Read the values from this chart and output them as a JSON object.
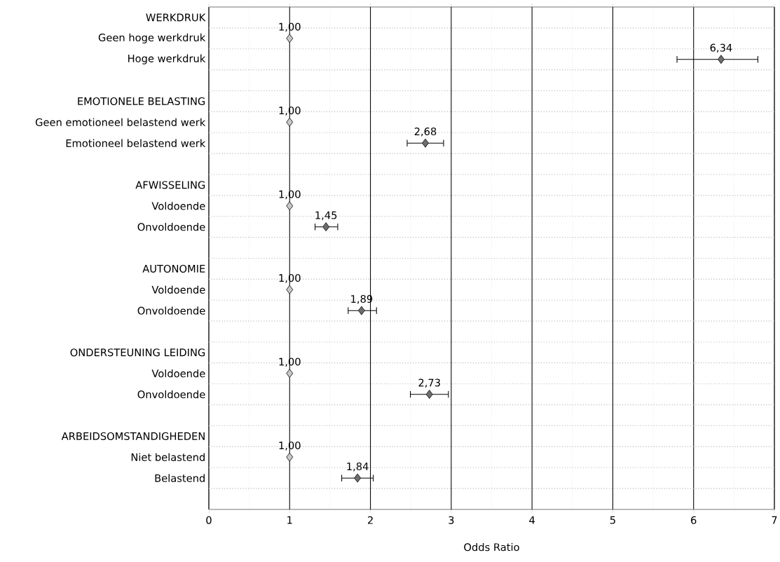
{
  "chart_data": {
    "type": "scatter",
    "orientation": "horizontal",
    "xlabel": "Odds Ratio",
    "xlim": [
      0,
      7
    ],
    "xticks": [
      0,
      1,
      2,
      3,
      4,
      5,
      6,
      7
    ],
    "grid": true,
    "marker": "diamond",
    "categories": [
      "WERKDRUK",
      "Geen hoge werkdruk",
      "Hoge werkdruk",
      null,
      "EMOTIONELE BELASTING",
      "Geen emotioneel belastend werk",
      "Emotioneel belastend werk",
      null,
      "AFWISSELING",
      "Voldoende",
      "Onvoldoende",
      null,
      "AUTONOMIE",
      "Voldoende",
      "Onvoldoende",
      null,
      "ONDERSTEUNING LEIDING",
      "Voldoende",
      "Onvoldoende",
      null,
      "ARBEIDSOMSTANDIGHEDEN",
      "Niet belastend",
      "Belastend",
      null
    ],
    "series": [
      {
        "color": "#c8c8c8",
        "values": [
          null,
          1.0,
          null,
          null,
          null,
          1.0,
          null,
          null,
          null,
          1.0,
          null,
          null,
          null,
          1.0,
          null,
          null,
          null,
          1.0,
          null,
          null,
          null,
          1.0,
          null,
          null
        ],
        "value_labels": [
          null,
          "1,00",
          null,
          null,
          null,
          "1,00",
          null,
          null,
          null,
          "1,00",
          null,
          null,
          null,
          "1,00",
          null,
          null,
          null,
          "1,00",
          null,
          null,
          null,
          "1,00",
          null,
          null
        ]
      },
      {
        "color": "#6e6e6e",
        "values": [
          null,
          null,
          6.34,
          null,
          null,
          null,
          2.68,
          null,
          null,
          null,
          1.45,
          null,
          null,
          null,
          1.89,
          null,
          null,
          null,
          2.73,
          null,
          null,
          null,
          1.84,
          null
        ],
        "errors": [
          null,
          null,
          [
            5.79,
            6.8
          ],
          null,
          null,
          null,
          [
            2.45,
            2.91
          ],
          null,
          null,
          null,
          [
            1.31,
            1.6
          ],
          null,
          null,
          null,
          [
            1.72,
            2.08
          ],
          null,
          null,
          null,
          [
            2.49,
            2.97
          ],
          null,
          null,
          null,
          [
            1.64,
            2.04
          ],
          null
        ],
        "value_labels": [
          null,
          null,
          "6,34",
          null,
          null,
          null,
          "2,68",
          null,
          null,
          null,
          "1,45",
          null,
          null,
          null,
          "1,89",
          null,
          null,
          null,
          "2,73",
          null,
          null,
          null,
          "1,84",
          null
        ]
      }
    ]
  }
}
